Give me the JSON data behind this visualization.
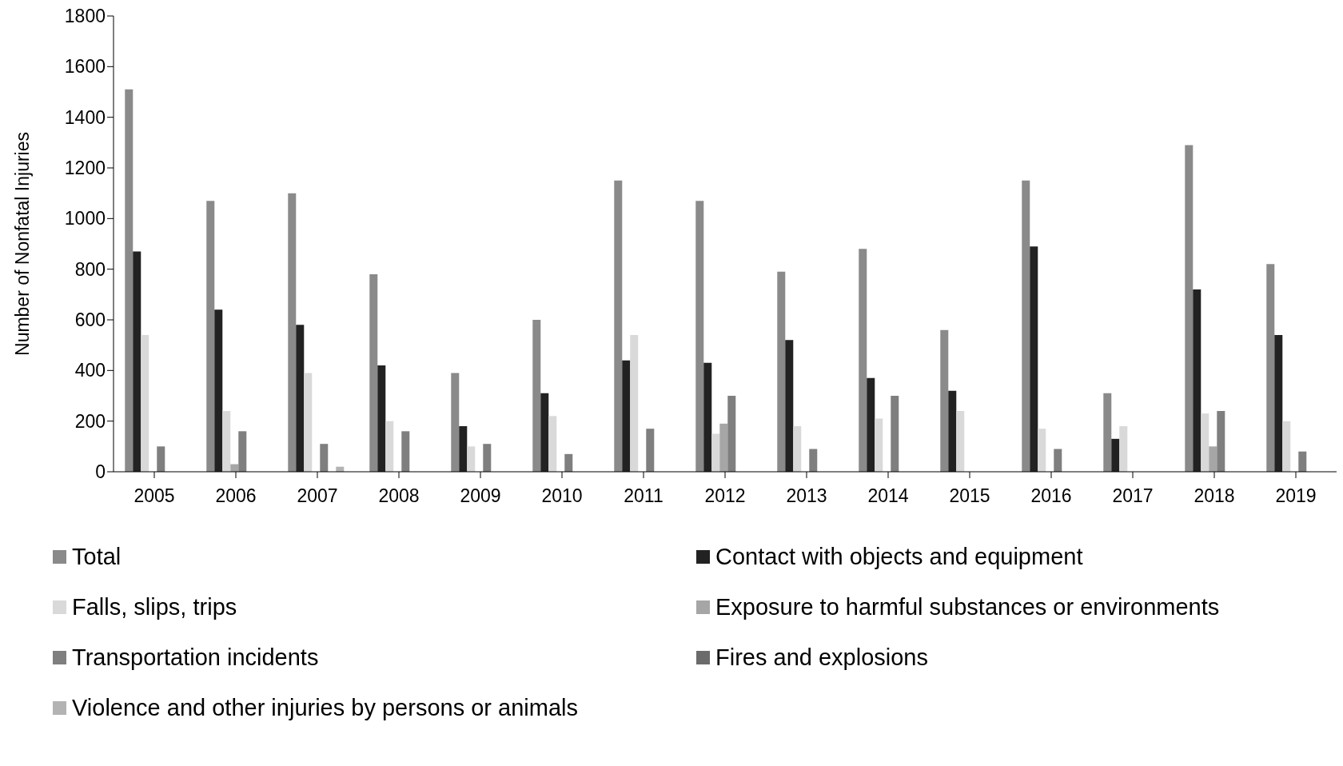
{
  "chart_data": {
    "type": "bar",
    "ylabel": "Number of Nonfatal Injuries",
    "categories": [
      "2005",
      "2006",
      "2007",
      "2008",
      "2009",
      "2010",
      "2011",
      "2012",
      "2013",
      "2014",
      "2015",
      "2016",
      "2017",
      "2018",
      "2019"
    ],
    "series": [
      {
        "name": "Total",
        "color": "#8a8a8a",
        "values": [
          1510,
          1070,
          1100,
          780,
          390,
          600,
          1150,
          1070,
          790,
          880,
          560,
          1150,
          310,
          1290,
          820
        ]
      },
      {
        "name": "Contact with objects and equipment",
        "color": "#222222",
        "values": [
          870,
          640,
          580,
          420,
          180,
          310,
          440,
          430,
          520,
          370,
          320,
          890,
          130,
          720,
          540
        ]
      },
      {
        "name": "Falls, slips, trips",
        "color": "#d9d9d9",
        "values": [
          540,
          240,
          390,
          200,
          100,
          220,
          540,
          150,
          180,
          210,
          240,
          170,
          180,
          230,
          200
        ]
      },
      {
        "name": "Exposure to harmful substances or environments",
        "color": "#a6a6a6",
        "values": [
          0,
          30,
          0,
          0,
          0,
          0,
          0,
          190,
          0,
          0,
          0,
          0,
          0,
          100,
          0
        ]
      },
      {
        "name": "Transportation incidents",
        "color": "#7f7f7f",
        "values": [
          100,
          160,
          110,
          160,
          110,
          70,
          170,
          300,
          90,
          300,
          0,
          90,
          0,
          240,
          80
        ]
      },
      {
        "name": "Fires and explosions",
        "color": "#6b6b6b",
        "values": [
          0,
          0,
          0,
          0,
          0,
          0,
          0,
          0,
          0,
          0,
          0,
          0,
          0,
          0,
          0
        ]
      },
      {
        "name": "Violence and other injuries by persons or animals",
        "color": "#b3b3b3",
        "values": [
          0,
          0,
          20,
          0,
          0,
          0,
          0,
          0,
          0,
          0,
          0,
          0,
          0,
          0,
          0
        ]
      }
    ],
    "ylim": [
      0,
      1800
    ],
    "yticks": [
      0,
      200,
      400,
      600,
      800,
      1000,
      1200,
      1400,
      1600,
      1800
    ],
    "grid": false,
    "legend": "bottom"
  }
}
